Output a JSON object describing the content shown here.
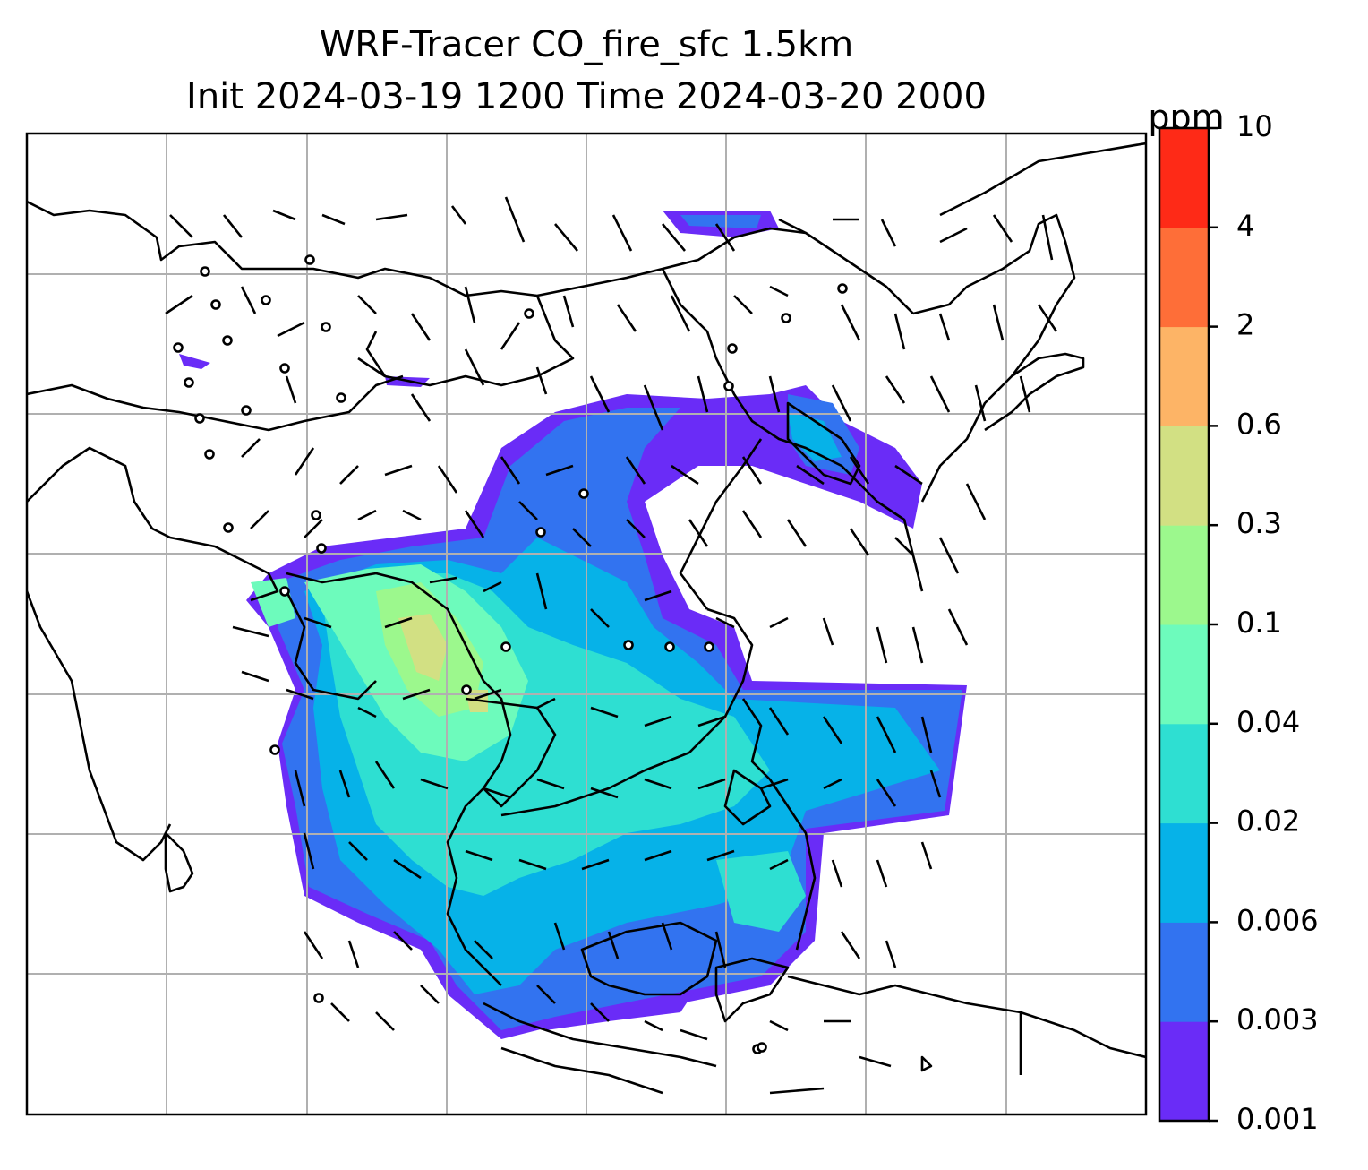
{
  "title": {
    "line1": "WRF-Tracer CO_fire_sfc 1.5km",
    "line2": "Init 2024-03-19 1200 Time 2024-03-20 2000"
  },
  "colorbar": {
    "unit": "ppm",
    "levels": [
      "0.001",
      "0.003",
      "0.006",
      "0.02",
      "0.04",
      "0.1",
      "0.3",
      "0.6",
      "2",
      "4",
      "10"
    ],
    "colors": [
      "#6a2cf7",
      "#3273f0",
      "#06b2e8",
      "#2edfd2",
      "#6dfbbc",
      "#9cf88d",
      "#d2e083",
      "#fdb466",
      "#fe6e38",
      "#fe2a17"
    ]
  },
  "map": {
    "gridlines": true,
    "gridline_color": "#b0b0b0",
    "coastline_color": "#000000",
    "wind_barb_color": "#000000"
  }
}
